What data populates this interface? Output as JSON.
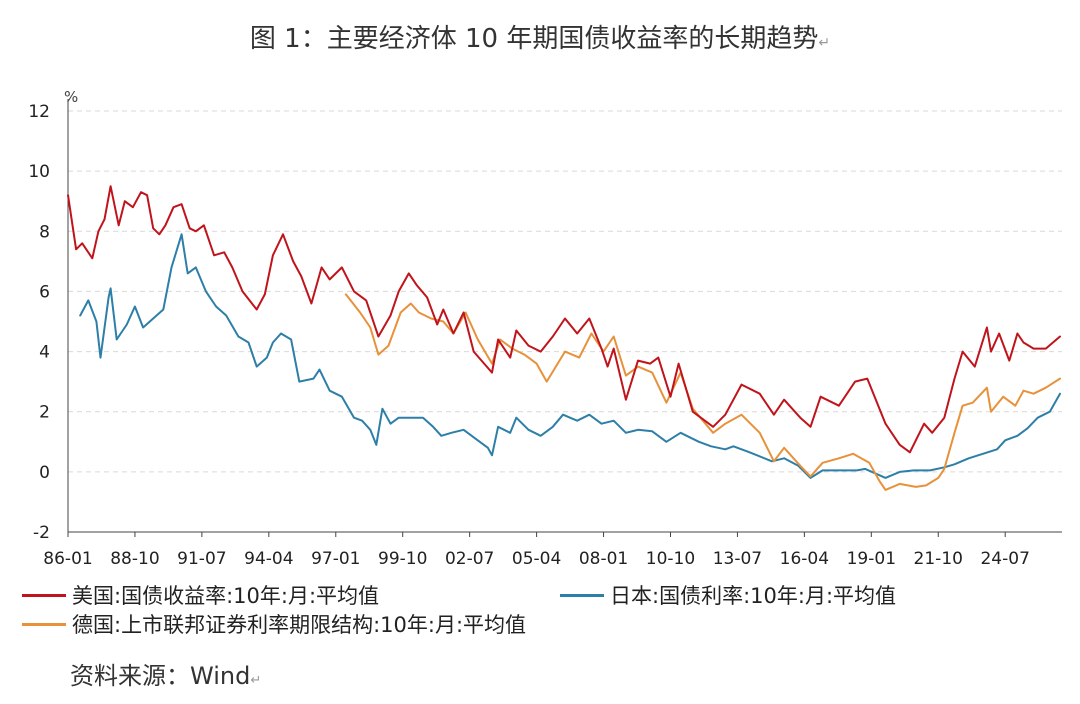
{
  "figure_title": "图 1：主要经济体 10 年期国债收益率的长期趋势",
  "paragraph_mark": "↵",
  "source": "资料来源：Wind",
  "colors": {
    "us": "#c0141c",
    "jp": "#2d7fa8",
    "de": "#e8913b",
    "grid": "#d9d9d9",
    "axis": "#444444"
  },
  "chart_data": {
    "type": "line",
    "title": "图 1：主要经济体 10 年期国债收益率的长期趋势",
    "ylabel": "%",
    "xlabel": "",
    "ylim": [
      -2,
      12
    ],
    "yticks": [
      -2,
      0,
      2,
      4,
      6,
      8,
      10,
      12
    ],
    "xlim": [
      "1986-01",
      "2026-11"
    ],
    "xticks": [
      "86-01",
      "88-10",
      "91-07",
      "94-04",
      "97-01",
      "99-10",
      "02-07",
      "05-04",
      "08-01",
      "10-10",
      "13-07",
      "16-04",
      "19-01",
      "21-10",
      "24-07"
    ],
    "grid": "horizontal dashed",
    "legend_position": "bottom",
    "series": [
      {
        "name": "美国:国债收益率:10年:月:平均值",
        "color": "#c0141c",
        "points": [
          [
            "1986-01",
            9.2
          ],
          [
            "1986-05",
            7.4
          ],
          [
            "1986-08",
            7.6
          ],
          [
            "1987-01",
            7.1
          ],
          [
            "1987-04",
            8.0
          ],
          [
            "1987-07",
            8.4
          ],
          [
            "1987-10",
            9.5
          ],
          [
            "1988-02",
            8.2
          ],
          [
            "1988-05",
            9.0
          ],
          [
            "1988-09",
            8.8
          ],
          [
            "1989-01",
            9.3
          ],
          [
            "1989-04",
            9.2
          ],
          [
            "1989-07",
            8.1
          ],
          [
            "1989-10",
            7.9
          ],
          [
            "1990-01",
            8.2
          ],
          [
            "1990-05",
            8.8
          ],
          [
            "1990-09",
            8.9
          ],
          [
            "1991-01",
            8.1
          ],
          [
            "1991-04",
            8.0
          ],
          [
            "1991-08",
            8.2
          ],
          [
            "1992-01",
            7.2
          ],
          [
            "1992-06",
            7.3
          ],
          [
            "1992-10",
            6.8
          ],
          [
            "1993-03",
            6.0
          ],
          [
            "1993-10",
            5.4
          ],
          [
            "1994-02",
            5.9
          ],
          [
            "1994-06",
            7.2
          ],
          [
            "1994-11",
            7.9
          ],
          [
            "1995-04",
            7.0
          ],
          [
            "1995-08",
            6.5
          ],
          [
            "1996-01",
            5.6
          ],
          [
            "1996-06",
            6.8
          ],
          [
            "1996-10",
            6.4
          ],
          [
            "1997-04",
            6.8
          ],
          [
            "1997-10",
            6.0
          ],
          [
            "1998-04",
            5.7
          ],
          [
            "1998-10",
            4.5
          ],
          [
            "1999-04",
            5.2
          ],
          [
            "1999-08",
            6.0
          ],
          [
            "2000-01",
            6.6
          ],
          [
            "2000-05",
            6.2
          ],
          [
            "2000-10",
            5.8
          ],
          [
            "2001-03",
            4.9
          ],
          [
            "2001-06",
            5.4
          ],
          [
            "2001-11",
            4.6
          ],
          [
            "2002-04",
            5.3
          ],
          [
            "2002-09",
            4.0
          ],
          [
            "2003-06",
            3.3
          ],
          [
            "2003-09",
            4.4
          ],
          [
            "2004-03",
            3.8
          ],
          [
            "2004-06",
            4.7
          ],
          [
            "2004-12",
            4.2
          ],
          [
            "2005-06",
            4.0
          ],
          [
            "2005-12",
            4.5
          ],
          [
            "2006-06",
            5.1
          ],
          [
            "2006-12",
            4.6
          ],
          [
            "2007-06",
            5.1
          ],
          [
            "2007-12",
            4.1
          ],
          [
            "2008-03",
            3.5
          ],
          [
            "2008-06",
            4.1
          ],
          [
            "2008-12",
            2.4
          ],
          [
            "2009-06",
            3.7
          ],
          [
            "2009-12",
            3.6
          ],
          [
            "2010-04",
            3.8
          ],
          [
            "2010-10",
            2.5
          ],
          [
            "2011-02",
            3.6
          ],
          [
            "2011-09",
            2.0
          ],
          [
            "2012-07",
            1.5
          ],
          [
            "2013-01",
            1.9
          ],
          [
            "2013-09",
            2.9
          ],
          [
            "2014-06",
            2.6
          ],
          [
            "2015-01",
            1.9
          ],
          [
            "2015-06",
            2.4
          ],
          [
            "2016-02",
            1.8
          ],
          [
            "2016-07",
            1.5
          ],
          [
            "2016-12",
            2.5
          ],
          [
            "2017-09",
            2.2
          ],
          [
            "2018-05",
            3.0
          ],
          [
            "2018-11",
            3.1
          ],
          [
            "2019-08",
            1.6
          ],
          [
            "2020-03",
            0.9
          ],
          [
            "2020-08",
            0.65
          ],
          [
            "2021-03",
            1.6
          ],
          [
            "2021-07",
            1.3
          ],
          [
            "2022-01",
            1.8
          ],
          [
            "2022-06",
            3.1
          ],
          [
            "2022-10",
            4.0
          ],
          [
            "2023-04",
            3.5
          ],
          [
            "2023-10",
            4.8
          ],
          [
            "2023-12",
            4.0
          ],
          [
            "2024-04",
            4.6
          ],
          [
            "2024-09",
            3.7
          ],
          [
            "2025-01",
            4.6
          ],
          [
            "2025-04",
            4.3
          ],
          [
            "2025-09",
            4.1
          ],
          [
            "2026-03",
            4.1
          ],
          [
            "2026-10",
            4.5
          ]
        ]
      },
      {
        "name": "日本:国债利率:10年:月:平均值",
        "color": "#2d7fa8",
        "points": [
          [
            "1986-07",
            5.2
          ],
          [
            "1986-11",
            5.7
          ],
          [
            "1987-03",
            5.0
          ],
          [
            "1987-05",
            3.8
          ],
          [
            "1987-09",
            5.8
          ],
          [
            "1987-10",
            6.1
          ],
          [
            "1988-01",
            4.4
          ],
          [
            "1988-06",
            4.9
          ],
          [
            "1988-10",
            5.5
          ],
          [
            "1989-02",
            4.8
          ],
          [
            "1989-07",
            5.1
          ],
          [
            "1989-12",
            5.4
          ],
          [
            "1990-04",
            6.8
          ],
          [
            "1990-09",
            7.9
          ],
          [
            "1990-12",
            6.6
          ],
          [
            "1991-04",
            6.8
          ],
          [
            "1991-09",
            6.0
          ],
          [
            "1992-02",
            5.5
          ],
          [
            "1992-07",
            5.2
          ],
          [
            "1993-01",
            4.5
          ],
          [
            "1993-06",
            4.3
          ],
          [
            "1993-10",
            3.5
          ],
          [
            "1994-03",
            3.8
          ],
          [
            "1994-06",
            4.3
          ],
          [
            "1994-10",
            4.6
          ],
          [
            "1995-03",
            4.4
          ],
          [
            "1995-07",
            3.0
          ],
          [
            "1996-02",
            3.1
          ],
          [
            "1996-05",
            3.4
          ],
          [
            "1996-10",
            2.7
          ],
          [
            "1997-04",
            2.5
          ],
          [
            "1997-10",
            1.8
          ],
          [
            "1998-02",
            1.7
          ],
          [
            "1998-06",
            1.4
          ],
          [
            "1998-09",
            0.9
          ],
          [
            "1998-12",
            2.1
          ],
          [
            "1999-04",
            1.6
          ],
          [
            "1999-08",
            1.8
          ],
          [
            "2000-02",
            1.8
          ],
          [
            "2000-08",
            1.8
          ],
          [
            "2001-01",
            1.5
          ],
          [
            "2001-05",
            1.2
          ],
          [
            "2001-10",
            1.3
          ],
          [
            "2002-04",
            1.4
          ],
          [
            "2002-10",
            1.1
          ],
          [
            "2003-04",
            0.8
          ],
          [
            "2003-06",
            0.55
          ],
          [
            "2003-09",
            1.5
          ],
          [
            "2004-03",
            1.3
          ],
          [
            "2004-06",
            1.8
          ],
          [
            "2004-12",
            1.4
          ],
          [
            "2005-06",
            1.2
          ],
          [
            "2005-12",
            1.5
          ],
          [
            "2006-05",
            1.9
          ],
          [
            "2006-12",
            1.7
          ],
          [
            "2007-06",
            1.9
          ],
          [
            "2007-12",
            1.6
          ],
          [
            "2008-06",
            1.7
          ],
          [
            "2008-12",
            1.3
          ],
          [
            "2009-06",
            1.4
          ],
          [
            "2010-01",
            1.35
          ],
          [
            "2010-08",
            1.0
          ],
          [
            "2011-03",
            1.3
          ],
          [
            "2011-12",
            1.0
          ],
          [
            "2012-06",
            0.85
          ],
          [
            "2013-01",
            0.75
          ],
          [
            "2013-05",
            0.85
          ],
          [
            "2014-01",
            0.65
          ],
          [
            "2014-12",
            0.35
          ],
          [
            "2015-06",
            0.45
          ],
          [
            "2016-01",
            0.2
          ],
          [
            "2016-07",
            -0.2
          ],
          [
            "2017-01",
            0.05
          ],
          [
            "2017-08",
            0.05
          ],
          [
            "2018-06",
            0.05
          ],
          [
            "2018-10",
            0.1
          ],
          [
            "2019-03",
            -0.05
          ],
          [
            "2019-08",
            -0.2
          ],
          [
            "2020-03",
            0.0
          ],
          [
            "2020-10",
            0.05
          ],
          [
            "2021-06",
            0.05
          ],
          [
            "2022-01",
            0.15
          ],
          [
            "2022-06",
            0.25
          ],
          [
            "2023-01",
            0.45
          ],
          [
            "2023-08",
            0.6
          ],
          [
            "2024-03",
            0.75
          ],
          [
            "2024-07",
            1.05
          ],
          [
            "2025-01",
            1.2
          ],
          [
            "2025-06",
            1.45
          ],
          [
            "2025-11",
            1.8
          ],
          [
            "2026-05",
            2.0
          ],
          [
            "2026-10",
            2.6
          ]
        ]
      },
      {
        "name": "德国:上市联邦证券利率期限结构:10年:月:平均值",
        "color": "#e8913b",
        "points": [
          [
            "1997-06",
            5.9
          ],
          [
            "1998-01",
            5.3
          ],
          [
            "1998-06",
            4.8
          ],
          [
            "1998-10",
            3.9
          ],
          [
            "1999-03",
            4.2
          ],
          [
            "1999-09",
            5.3
          ],
          [
            "2000-02",
            5.6
          ],
          [
            "2000-06",
            5.3
          ],
          [
            "2000-12",
            5.1
          ],
          [
            "2001-06",
            5.0
          ],
          [
            "2001-11",
            4.6
          ],
          [
            "2002-05",
            5.3
          ],
          [
            "2002-11",
            4.4
          ],
          [
            "2003-06",
            3.6
          ],
          [
            "2003-10",
            4.4
          ],
          [
            "2004-04",
            4.1
          ],
          [
            "2004-10",
            3.9
          ],
          [
            "2005-04",
            3.6
          ],
          [
            "2005-09",
            3.0
          ],
          [
            "2006-06",
            4.0
          ],
          [
            "2007-01",
            3.8
          ],
          [
            "2007-07",
            4.6
          ],
          [
            "2008-01",
            4.0
          ],
          [
            "2008-06",
            4.5
          ],
          [
            "2008-12",
            3.2
          ],
          [
            "2009-06",
            3.5
          ],
          [
            "2010-01",
            3.3
          ],
          [
            "2010-08",
            2.3
          ],
          [
            "2011-03",
            3.3
          ],
          [
            "2011-09",
            2.1
          ],
          [
            "2012-07",
            1.3
          ],
          [
            "2013-01",
            1.6
          ],
          [
            "2013-09",
            1.9
          ],
          [
            "2014-06",
            1.3
          ],
          [
            "2015-01",
            0.35
          ],
          [
            "2015-06",
            0.8
          ],
          [
            "2016-02",
            0.2
          ],
          [
            "2016-07",
            -0.15
          ],
          [
            "2017-01",
            0.3
          ],
          [
            "2017-09",
            0.45
          ],
          [
            "2018-04",
            0.6
          ],
          [
            "2018-12",
            0.3
          ],
          [
            "2019-05",
            -0.3
          ],
          [
            "2019-08",
            -0.6
          ],
          [
            "2020-03",
            -0.4
          ],
          [
            "2020-11",
            -0.5
          ],
          [
            "2021-04",
            -0.45
          ],
          [
            "2021-10",
            -0.2
          ],
          [
            "2022-01",
            0.1
          ],
          [
            "2022-06",
            1.3
          ],
          [
            "2022-10",
            2.2
          ],
          [
            "2023-03",
            2.3
          ],
          [
            "2023-10",
            2.8
          ],
          [
            "2023-12",
            2.0
          ],
          [
            "2024-06",
            2.5
          ],
          [
            "2024-12",
            2.2
          ],
          [
            "2025-04",
            2.7
          ],
          [
            "2025-09",
            2.6
          ],
          [
            "2026-03",
            2.8
          ],
          [
            "2026-10",
            3.1
          ]
        ]
      }
    ]
  }
}
